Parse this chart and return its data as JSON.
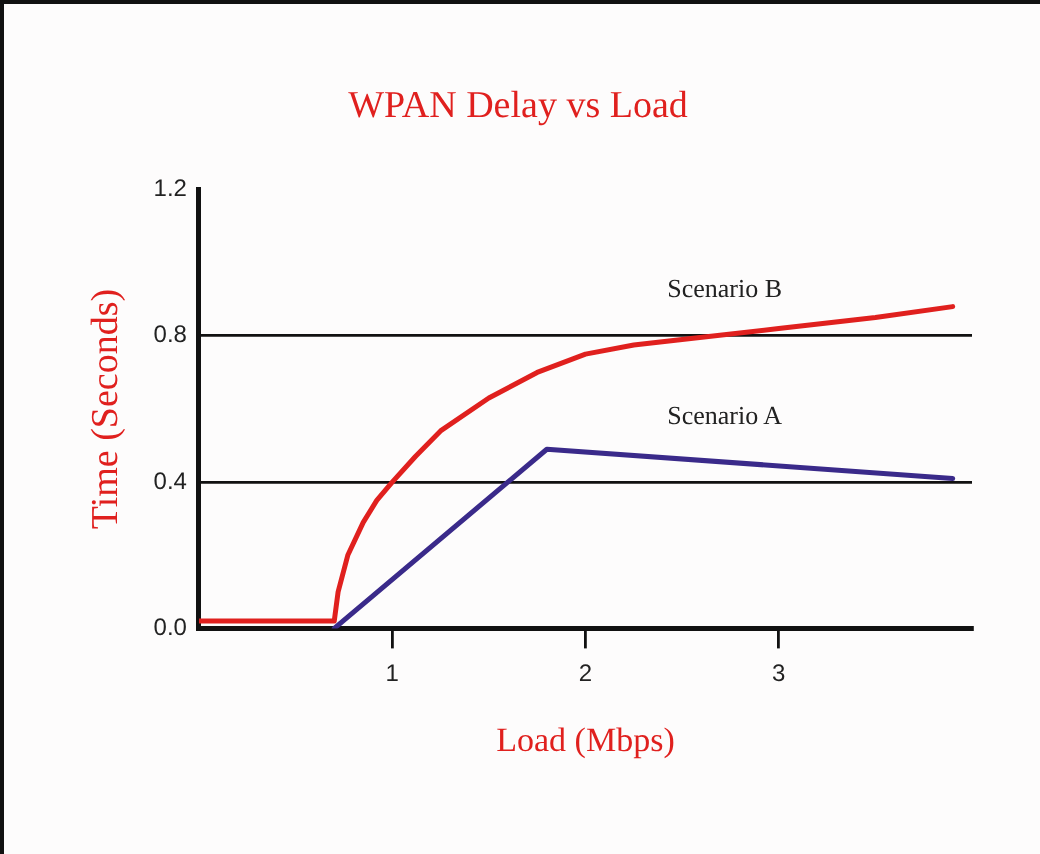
{
  "chart_data": {
    "type": "line",
    "title": "WPAN Delay vs Load",
    "xlabel": "Load (Mbps)",
    "ylabel": "Time (Seconds)",
    "xlim": [
      0,
      4
    ],
    "xticks": [
      1,
      2,
      3
    ],
    "ylim": [
      0,
      1.2
    ],
    "yticks": [
      {
        "value": 0,
        "label": "0.0"
      },
      {
        "value": 0.4,
        "label": "0.4"
      },
      {
        "value": 0.8,
        "label": "0.8"
      },
      {
        "value": 1.2,
        "label": "1.2"
      }
    ],
    "grid": "y",
    "legend": false,
    "marker": "none",
    "line_style": "solid",
    "series": [
      {
        "name": "Scenario B",
        "color": "#e0201e",
        "x": [
          0,
          0.7,
          0.72,
          0.77,
          0.85,
          0.92,
          1,
          1.12,
          1.25,
          1.5,
          1.75,
          2,
          2.25,
          2.5,
          3,
          3.5,
          3.9
        ],
        "values": [
          0.02,
          0.02,
          0.1,
          0.2,
          0.29,
          0.35,
          0.4,
          0.47,
          0.54,
          0.63,
          0.7,
          0.75,
          0.775,
          0.79,
          0.82,
          0.85,
          0.88
        ]
      },
      {
        "name": "Scenario A",
        "color": "#3a2a8a",
        "x": [
          0.7,
          1.8,
          3.9
        ],
        "values": [
          0,
          0.49,
          0.41
        ]
      }
    ]
  }
}
